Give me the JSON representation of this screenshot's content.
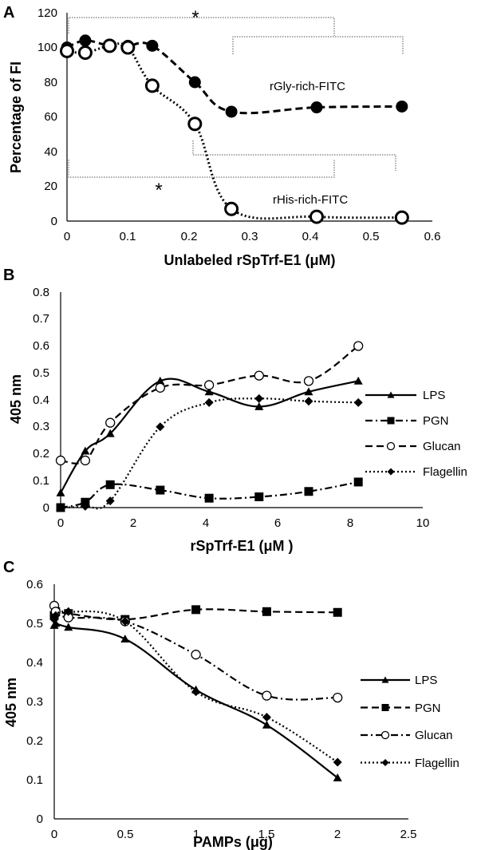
{
  "chart_data": [
    {
      "type": "line",
      "panel_label": "A",
      "title": "",
      "xlabel": "Unlabeled rSpTrf-E1 (μM)",
      "ylabel": "Percentage of FI",
      "xlim": [
        0,
        0.6
      ],
      "ylim": [
        0,
        120
      ],
      "xticks": [
        "0",
        "0.1",
        "0.2",
        "0.3",
        "0.4",
        "0.5",
        "0.6"
      ],
      "yticks": [
        "0",
        "20",
        "40",
        "60",
        "80",
        "100",
        "120"
      ],
      "grid": false,
      "series": [
        {
          "name": "rGly-rich-FITC",
          "marker": "filled-circle",
          "line": "dashed",
          "x": [
            0,
            0.03,
            0.07,
            0.1,
            0.14,
            0.21,
            0.27,
            0.41,
            0.55
          ],
          "y": [
            100,
            104,
            101,
            101,
            101,
            80,
            63,
            65.5,
            66
          ]
        },
        {
          "name": "rHis-rich-FITC",
          "marker": "open-circle",
          "line": "dotted",
          "x": [
            0,
            0.03,
            0.07,
            0.1,
            0.14,
            0.21,
            0.27,
            0.41,
            0.55
          ],
          "y": [
            98,
            97,
            101,
            100,
            78,
            56,
            7,
            2.5,
            2
          ]
        }
      ],
      "annotations": [
        "*",
        "*"
      ]
    },
    {
      "type": "line",
      "panel_label": "B",
      "title": "",
      "xlabel": "rSpTrf-E1 (μM )",
      "ylabel": "405 nm",
      "xlim": [
        0,
        10
      ],
      "ylim": [
        0,
        0.8
      ],
      "xticks": [
        "0",
        "2",
        "4",
        "6",
        "8",
        "10"
      ],
      "yticks": [
        "0",
        "0.1",
        "0.2",
        "0.3",
        "0.4",
        "0.5",
        "0.6",
        "0.7",
        "0.8"
      ],
      "grid": false,
      "legend_position": "right",
      "series": [
        {
          "name": "LPS",
          "marker": "triangle",
          "line": "solid",
          "x": [
            0,
            0.68,
            1.37,
            2.75,
            4.1,
            5.48,
            6.85,
            8.22
          ],
          "y": [
            0.055,
            0.21,
            0.275,
            0.47,
            0.43,
            0.375,
            0.43,
            0.47
          ]
        },
        {
          "name": "PGN",
          "marker": "square",
          "line": "dash-dot",
          "x": [
            0,
            0.68,
            1.37,
            2.75,
            4.1,
            5.48,
            6.85,
            8.22
          ],
          "y": [
            0.0,
            0.02,
            0.085,
            0.065,
            0.035,
            0.04,
            0.06,
            0.095
          ]
        },
        {
          "name": "Glucan",
          "marker": "open-circle",
          "line": "dashed",
          "x": [
            0,
            0.68,
            1.37,
            2.75,
            4.1,
            5.48,
            6.85,
            8.22
          ],
          "y": [
            0.175,
            0.175,
            0.315,
            0.445,
            0.455,
            0.49,
            0.47,
            0.6
          ]
        },
        {
          "name": "Flagellin",
          "marker": "diamond",
          "line": "dotted",
          "x": [
            0,
            0.68,
            1.37,
            2.75,
            4.1,
            5.48,
            6.85,
            8.22
          ],
          "y": [
            0.0,
            0.005,
            0.025,
            0.3,
            0.39,
            0.405,
            0.395,
            0.39
          ]
        }
      ]
    },
    {
      "type": "line",
      "panel_label": "C",
      "title": "",
      "xlabel": "PAMPs (μg)",
      "ylabel": "405 nm",
      "xlim": [
        0,
        2.5
      ],
      "ylim": [
        0,
        0.6
      ],
      "xticks": [
        "0",
        "0.5",
        "1",
        "1.5",
        "2",
        "2.5"
      ],
      "yticks": [
        "0",
        "0.1",
        "0.2",
        "0.3",
        "0.4",
        "0.5",
        "0.6"
      ],
      "grid": false,
      "legend_position": "right",
      "series": [
        {
          "name": "LPS",
          "marker": "triangle",
          "line": "solid",
          "x": [
            0,
            0.01,
            0.1,
            0.5,
            1,
            1.5,
            2
          ],
          "y": [
            0.495,
            0.5,
            0.49,
            0.46,
            0.33,
            0.24,
            0.105
          ]
        },
        {
          "name": "PGN",
          "marker": "square",
          "line": "dashed",
          "x": [
            0,
            0.01,
            0.1,
            0.5,
            1,
            1.5,
            2
          ],
          "y": [
            0.52,
            0.53,
            0.525,
            0.51,
            0.535,
            0.53,
            0.528
          ]
        },
        {
          "name": "Glucan",
          "marker": "open-circle",
          "line": "dash-dot",
          "x": [
            0,
            0.01,
            0.1,
            0.5,
            1,
            1.5,
            2
          ],
          "y": [
            0.545,
            0.53,
            0.515,
            0.505,
            0.42,
            0.315,
            0.31
          ]
        },
        {
          "name": "Flagellin",
          "marker": "diamond",
          "line": "dotted",
          "x": [
            0,
            0.01,
            0.1,
            0.5,
            1,
            1.5,
            2
          ],
          "y": [
            0.51,
            0.52,
            0.53,
            0.505,
            0.325,
            0.26,
            0.145
          ]
        }
      ]
    }
  ]
}
